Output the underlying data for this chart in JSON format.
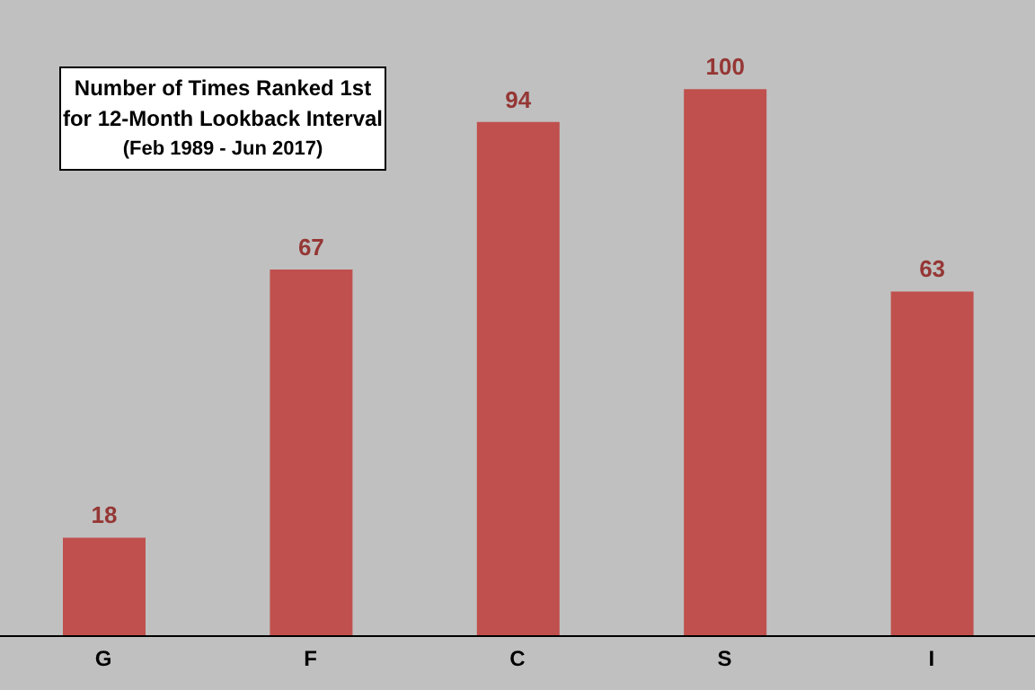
{
  "chart_data": {
    "type": "bar",
    "title": "Number of Times Ranked 1st for 12-Month Lookback Interval",
    "subtitle": "(Feb 1989 - Jun 2017)",
    "categories": [
      "G",
      "F",
      "C",
      "S",
      "I"
    ],
    "values": [
      18,
      67,
      94,
      100,
      63
    ],
    "color": "#c0504d",
    "data_labels": true,
    "tick_labels": "x"
  }
}
